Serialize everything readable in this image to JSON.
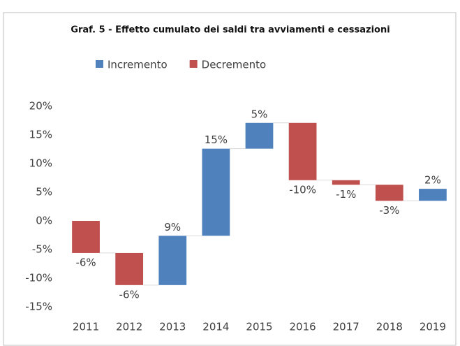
{
  "chart_data": {
    "type": "waterfall",
    "title": "Graf. 5 - Effetto cumulato dei saldi tra avviamenti e cessazioni",
    "categories": [
      "2011",
      "2012",
      "2013",
      "2014",
      "2015",
      "2016",
      "2017",
      "2018",
      "2019"
    ],
    "series": [
      {
        "name": "Incremento",
        "color": "#4f81bd",
        "values": [
          null,
          null,
          8.6,
          15.2,
          4.5,
          null,
          null,
          null,
          2.1
        ],
        "value_labels": [
          null,
          null,
          "9%",
          "15%",
          "5%",
          null,
          null,
          null,
          "2%"
        ]
      },
      {
        "name": "Decremento",
        "color": "#c0504d",
        "values": [
          -5.6,
          -5.6,
          null,
          null,
          null,
          -10,
          -0.8,
          -2.8,
          null
        ],
        "value_labels": [
          "-6%",
          "-6%",
          null,
          null,
          null,
          "-10%",
          "-1%",
          "-3%",
          null
        ]
      }
    ],
    "ylim": [
      -15,
      20
    ],
    "yticks": [
      {
        "value": -15,
        "label": "-15%"
      },
      {
        "value": -10,
        "label": "-10%"
      },
      {
        "value": -5,
        "label": "-5%"
      },
      {
        "value": 0,
        "label": "0%"
      },
      {
        "value": 5,
        "label": "5%"
      },
      {
        "value": 10,
        "label": "10%"
      },
      {
        "value": 15,
        "label": "15%"
      },
      {
        "value": 20,
        "label": "20%"
      }
    ],
    "grid": false,
    "legend": "top"
  }
}
